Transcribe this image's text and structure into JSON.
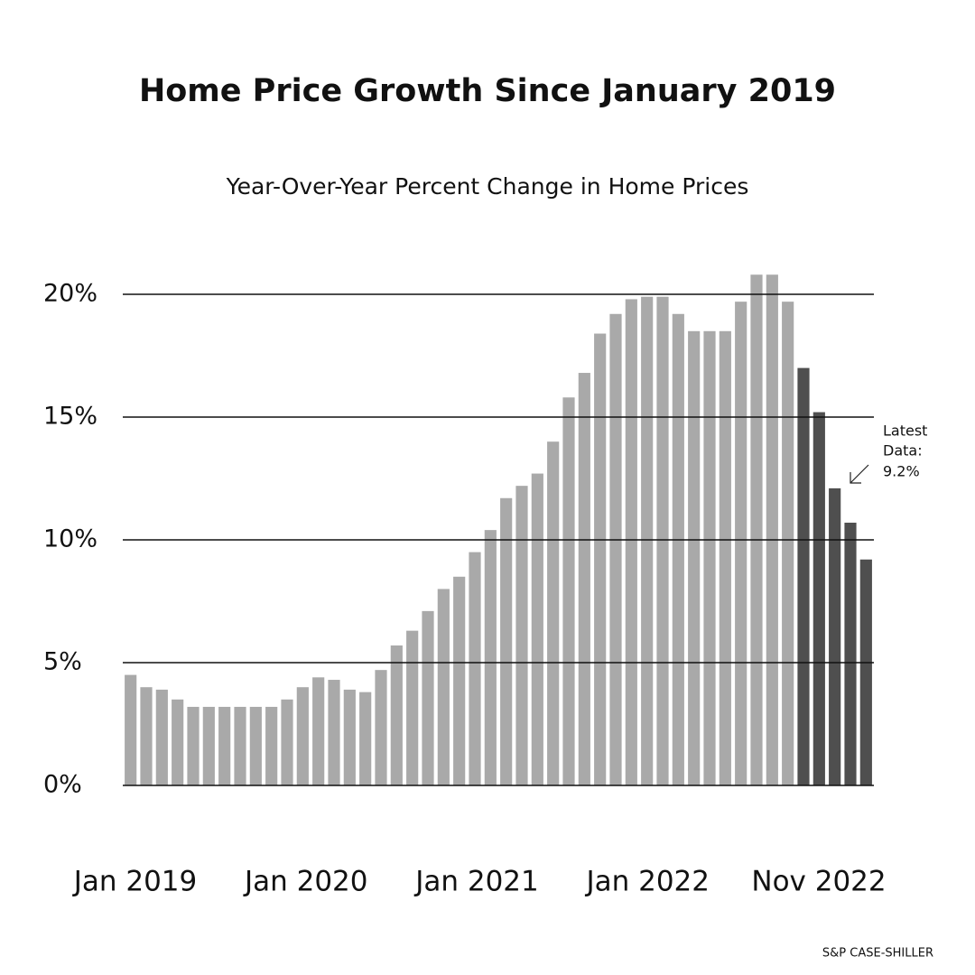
{
  "chart_data": {
    "type": "bar",
    "title": "Home Price Growth Since January 2019",
    "subtitle": "Year-Over-Year Percent Change in Home Prices",
    "values": [
      4.5,
      4.0,
      3.9,
      3.5,
      3.2,
      3.2,
      3.2,
      3.2,
      3.2,
      3.2,
      3.5,
      4.0,
      4.4,
      4.3,
      3.9,
      3.8,
      4.7,
      5.7,
      6.3,
      7.1,
      8.0,
      8.5,
      9.5,
      10.4,
      11.7,
      12.2,
      12.7,
      14.0,
      15.8,
      16.8,
      18.4,
      19.2,
      19.8,
      19.9,
      19.9,
      19.2,
      18.5,
      18.5,
      18.5,
      19.7,
      20.8,
      20.8,
      19.7,
      17.0,
      15.2,
      12.1,
      10.7,
      9.2
    ],
    "colors": [
      "#a9a9a9",
      "#a9a9a9",
      "#a9a9a9",
      "#a9a9a9",
      "#a9a9a9",
      "#a9a9a9",
      "#a9a9a9",
      "#a9a9a9",
      "#a9a9a9",
      "#a9a9a9",
      "#a9a9a9",
      "#a9a9a9",
      "#a9a9a9",
      "#a9a9a9",
      "#a9a9a9",
      "#a9a9a9",
      "#a9a9a9",
      "#a9a9a9",
      "#a9a9a9",
      "#a9a9a9",
      "#a9a9a9",
      "#a9a9a9",
      "#a9a9a9",
      "#a9a9a9",
      "#a9a9a9",
      "#a9a9a9",
      "#a9a9a9",
      "#a9a9a9",
      "#a9a9a9",
      "#a9a9a9",
      "#a9a9a9",
      "#a9a9a9",
      "#a9a9a9",
      "#a9a9a9",
      "#a9a9a9",
      "#a9a9a9",
      "#a9a9a9",
      "#a9a9a9",
      "#a9a9a9",
      "#a9a9a9",
      "#a9a9a9",
      "#a9a9a9",
      "#a9a9a9",
      "#4f4f4f",
      "#4f4f4f",
      "#4f4f4f",
      "#4f4f4f",
      "#4f4f4f"
    ],
    "x_labels": [
      "Jan 2019",
      "Jan 2020",
      "Jan 2021",
      "Jan 2022",
      "Nov 2022"
    ],
    "ylim": [
      0,
      20
    ],
    "yticks": [
      {
        "value": 0,
        "label": "0%"
      },
      {
        "value": 5,
        "label": "5%"
      },
      {
        "value": 10,
        "label": "10%"
      },
      {
        "value": 15,
        "label": "15%"
      },
      {
        "value": 20,
        "label": "20%"
      }
    ],
    "grid": true,
    "annotation": [
      "Latest",
      "Data:",
      "9.2%"
    ],
    "source": "S&P CASE-SHILLER"
  }
}
